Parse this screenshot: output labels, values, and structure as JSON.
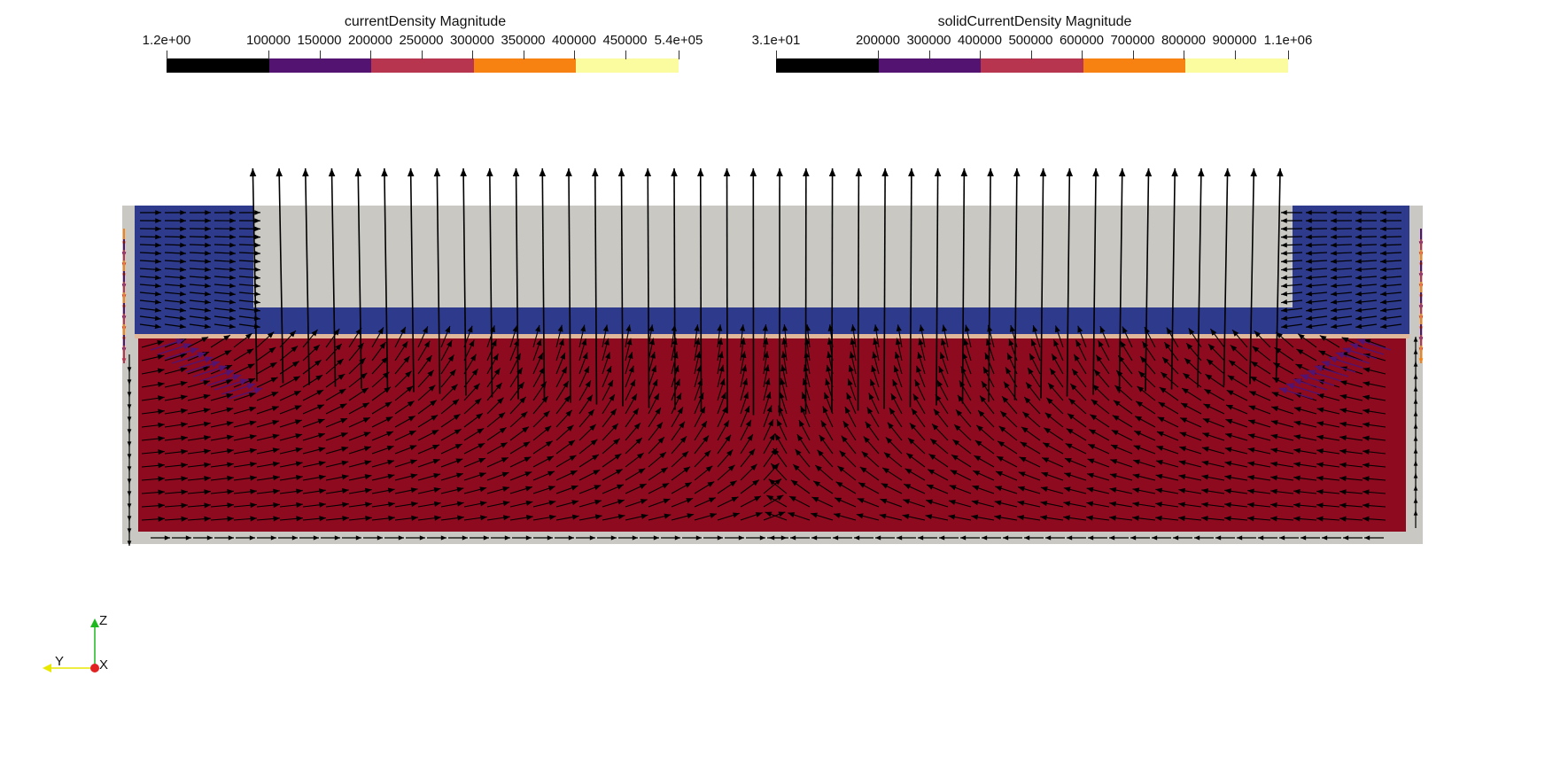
{
  "colorbars": [
    {
      "id": "current-density",
      "title": "currentDensity Magnitude",
      "labels": [
        "1.2e+00",
        "100000",
        "150000",
        "200000",
        "250000",
        "300000",
        "350000",
        "400000",
        "450000",
        "5.4e+05"
      ],
      "colors": [
        "#000000",
        "#521470",
        "#b7354f",
        "#f78212",
        "#fbfba0"
      ]
    },
    {
      "id": "solid-current-density",
      "title": "solidCurrentDensity Magnitude",
      "labels": [
        "3.1e+01",
        "200000",
        "300000",
        "400000",
        "500000",
        "600000",
        "700000",
        "800000",
        "900000",
        "1.1e+06"
      ],
      "colors": [
        "#000000",
        "#521470",
        "#b7354f",
        "#f78212",
        "#fbfba0"
      ]
    }
  ],
  "scene": {
    "background": "#ffffff",
    "frame_color": "#c9c8c2",
    "electrode_color": "#2e3a8c",
    "membrane_color": "#e2b89a",
    "electrolyte_color": "#8e0a1f",
    "arrow_color": "#000000",
    "arrow_accent_colors": [
      "#f78212",
      "#521470",
      "#b7354f"
    ]
  },
  "axes": {
    "z": "Z",
    "y": "Y",
    "x": "X"
  }
}
